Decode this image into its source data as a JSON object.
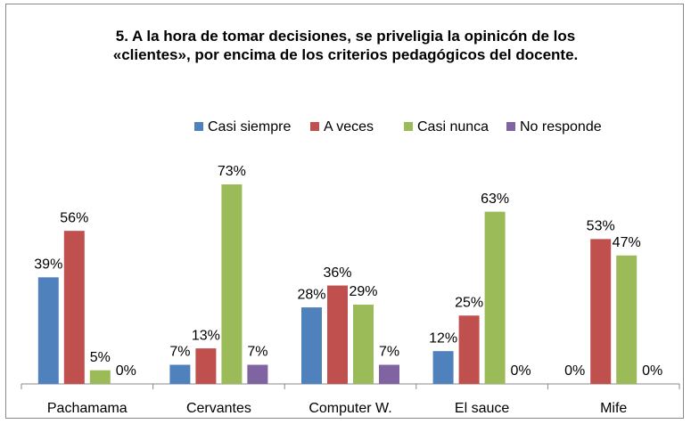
{
  "chart_data": {
    "type": "bar",
    "title": "5. A la hora de tomar decisiones, se priveligia la opinicón de los «clientes», por encima de los criterios pedagógicos del docente.",
    "categories": [
      "Pachamama",
      "Cervantes",
      "Computer W.",
      "El sauce",
      "Mife"
    ],
    "series": [
      {
        "name": "Casi siempre",
        "color": "#4f81bd",
        "values": [
          39,
          7,
          28,
          12,
          0
        ],
        "value_labels": [
          "39%",
          "7%",
          "28%",
          "12%",
          "0%"
        ]
      },
      {
        "name": "A veces",
        "color": "#c0504d",
        "values": [
          56,
          13,
          36,
          25,
          53
        ],
        "value_labels": [
          "56%",
          "13%",
          "36%",
          "25%",
          "53%"
        ]
      },
      {
        "name": "Casi nunca",
        "color": "#9bbb59",
        "values": [
          5,
          73,
          29,
          63,
          47
        ],
        "value_labels": [
          "5%",
          "73%",
          "29%",
          "63%",
          "47%"
        ]
      },
      {
        "name": "No responde",
        "color": "#8064a2",
        "values": [
          0,
          7,
          7,
          0,
          0
        ],
        "value_labels": [
          "0%",
          "7%",
          "7%",
          "0%",
          "0%"
        ]
      }
    ],
    "legend": "top"
  }
}
